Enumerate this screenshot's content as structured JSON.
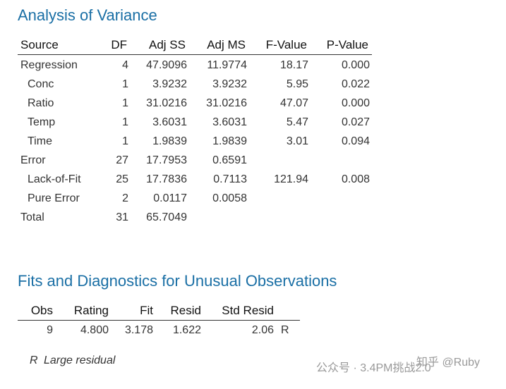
{
  "anova": {
    "title": "Analysis of Variance",
    "columns": [
      "Source",
      "DF",
      "Adj SS",
      "Adj MS",
      "F-Value",
      "P-Value"
    ],
    "rows": [
      [
        "Regression",
        "4",
        "47.9096",
        "11.9774",
        "18.17",
        "0.000"
      ],
      [
        "Conc",
        "1",
        "3.9232",
        "3.9232",
        "5.95",
        "0.022"
      ],
      [
        "Ratio",
        "1",
        "31.0216",
        "31.0216",
        "47.07",
        "0.000"
      ],
      [
        "Temp",
        "1",
        "3.6031",
        "3.6031",
        "5.47",
        "0.027"
      ],
      [
        "Time",
        "1",
        "1.9839",
        "1.9839",
        "3.01",
        "0.094"
      ],
      [
        "Error",
        "27",
        "17.7953",
        "0.6591",
        null,
        null
      ],
      [
        "Lack-of-Fit",
        "25",
        "17.7836",
        "0.7113",
        "121.94",
        "0.008"
      ],
      [
        "Pure Error",
        "2",
        "0.0117",
        "0.0058",
        null,
        null
      ],
      [
        "Total",
        "31",
        "65.7049",
        null,
        null,
        null
      ]
    ]
  },
  "unusual": {
    "title": "Fits and Diagnostics for Unusual Observations",
    "columns": [
      "Obs",
      "Rating",
      "Fit",
      "Resid",
      "Std Resid"
    ],
    "rows": [
      [
        "9",
        "4.800",
        "3.178",
        "1.622",
        "2.06",
        "R"
      ]
    ],
    "note": {
      "flag": "R",
      "text": "Large residual"
    }
  },
  "watermark": {
    "account": "公众号 · 3.4PM挑战2.0",
    "zhihu": "知乎 @Ruby"
  }
}
